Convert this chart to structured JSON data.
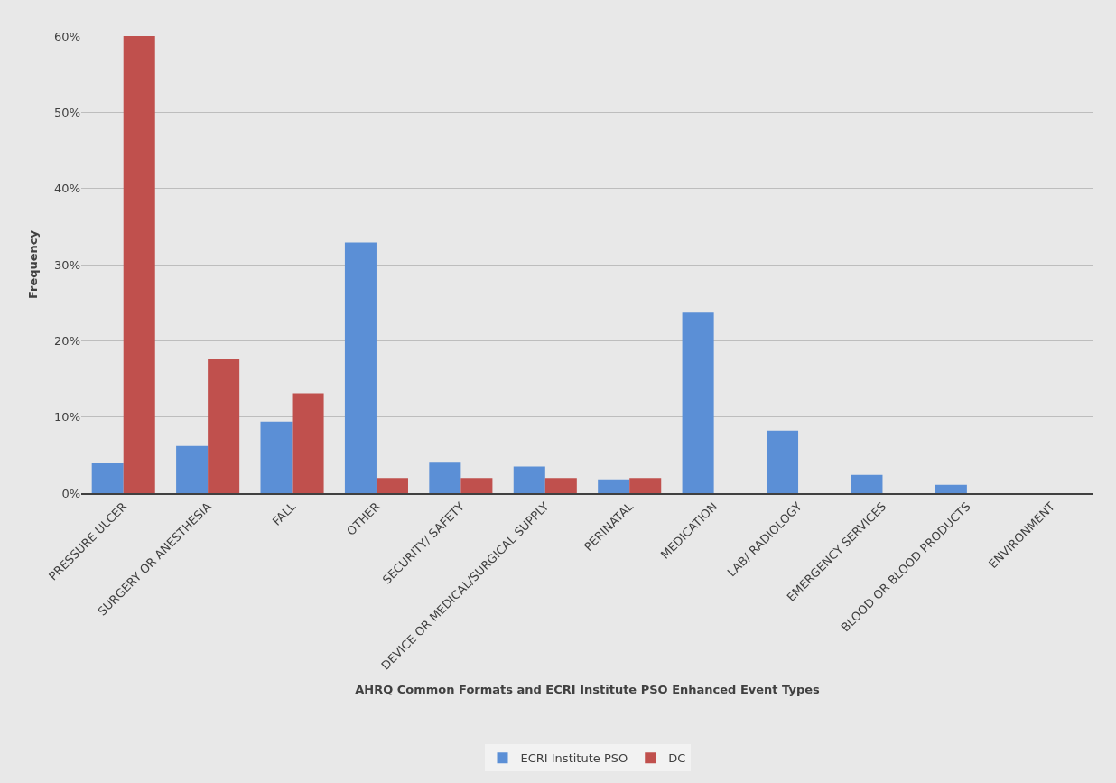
{
  "chart_data": {
    "type": "bar",
    "xlabel": "AHRQ Common Formats and ECRI Institute PSO Enhanced Event Types",
    "ylabel": "Frequency",
    "categories": [
      "PRESSURE ULCER",
      "SURGERY OR ANESTHESIA",
      "FALL",
      "OTHER",
      "SECURITY/ SAFETY",
      "DEVICE OR MEDICAL/SURGICAL SUPPLY",
      "PERINATAL",
      "MEDICATION",
      "LAB/ RADIOLOGY",
      "EMERGENCY SERVICES",
      "BLOOD OR BLOOD PRODUCTS",
      "ENVIRONMENT"
    ],
    "series": [
      {
        "name": "ECRI Institute PSO",
        "color": "#5b8fd6",
        "values": [
          3.9,
          6.2,
          9.4,
          32.9,
          4.0,
          3.5,
          1.8,
          23.7,
          8.2,
          2.4,
          1.1,
          0
        ]
      },
      {
        "name": "DC",
        "color": "#c0504d",
        "values": [
          60,
          17.6,
          13.1,
          2.0,
          2.0,
          2.0,
          2.0,
          0,
          0,
          0,
          0,
          0
        ]
      }
    ],
    "ylim": [
      0,
      60
    ],
    "yticks": [
      {
        "value": 0,
        "label": "0%"
      },
      {
        "value": 10,
        "label": "10%"
      },
      {
        "value": 20,
        "label": "20%"
      },
      {
        "value": 30,
        "label": "30%"
      },
      {
        "value": 40,
        "label": "40%"
      },
      {
        "value": 50,
        "label": "50%"
      },
      {
        "value": 60,
        "label": "60%"
      }
    ],
    "grid": "y",
    "legend": "bottom"
  }
}
